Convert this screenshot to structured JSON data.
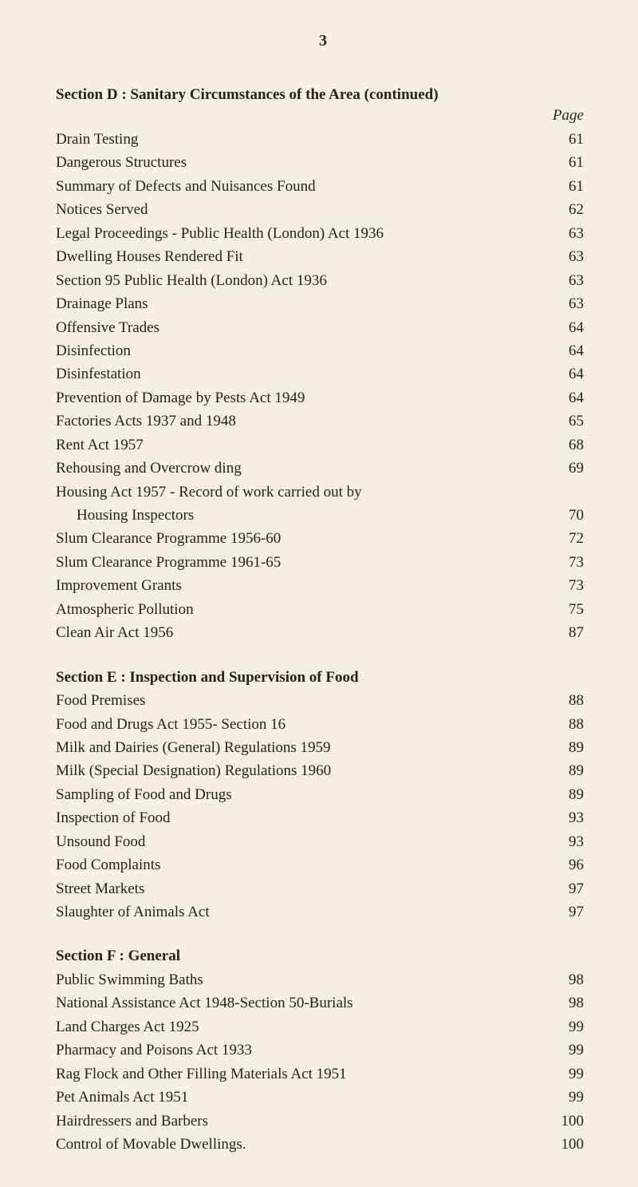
{
  "page_number": "3",
  "page_label": "Page",
  "colors": {
    "background": "#f5efe2",
    "text": "#2a1f15"
  },
  "typography": {
    "font_family": "Georgia, Times New Roman, serif",
    "body_fontsize_pt": 14,
    "title_fontsize_pt": 14,
    "page_number_fontsize_pt": 15,
    "line_height": 1.55
  },
  "sectionD": {
    "title": "Section D : Sanitary Circumstances of the Area (continued)",
    "items": [
      {
        "label": "Drain Testing",
        "page": "61"
      },
      {
        "label": "Dangerous Structures",
        "page": "61"
      },
      {
        "label": "Summary of Defects and Nuisances Found",
        "page": "61"
      },
      {
        "label": "Notices Served",
        "page": "62"
      },
      {
        "label": "Legal Proceedings - Public Health (London) Act 1936",
        "page": "63"
      },
      {
        "label": "Dwelling Houses Rendered Fit",
        "page": "63"
      },
      {
        "label": "Section 95 Public Health (London) Act 1936",
        "page": "63"
      },
      {
        "label": "Drainage Plans",
        "page": "63"
      },
      {
        "label": "Offensive Trades",
        "page": "64"
      },
      {
        "label": "Disinfection",
        "page": "64"
      },
      {
        "label": "Disinfestation",
        "page": "64"
      },
      {
        "label": "Prevention of Damage by Pests Act 1949",
        "page": "64"
      },
      {
        "label": "Factories Acts 1937 and 1948",
        "page": "65"
      },
      {
        "label": "Rent Act 1957",
        "page": "68"
      },
      {
        "label": "Rehousing and Overcrow ding",
        "page": "69"
      },
      {
        "label": "Housing Act 1957 - Record of work carried out by",
        "page": ""
      },
      {
        "label": "Housing Inspectors",
        "page": "70",
        "indent": true
      },
      {
        "label": "Slum Clearance Programme 1956-60",
        "page": "72"
      },
      {
        "label": "Slum Clearance Programme 1961-65",
        "page": "73"
      },
      {
        "label": "Improvement Grants",
        "page": "73"
      },
      {
        "label": "Atmospheric Pollution",
        "page": "75"
      },
      {
        "label": "Clean Air Act 1956",
        "page": "87"
      }
    ]
  },
  "sectionE": {
    "title": "Section E : Inspection and Supervision of Food",
    "items": [
      {
        "label": "Food Premises",
        "page": "88"
      },
      {
        "label": "Food and Drugs Act 1955- Section 16",
        "page": "88"
      },
      {
        "label": "Milk and Dairies (General) Regulations 1959",
        "page": "89"
      },
      {
        "label": "Milk (Special Designation) Regulations 1960",
        "page": "89"
      },
      {
        "label": "Sampling of Food and Drugs",
        "page": "89"
      },
      {
        "label": "Inspection of Food",
        "page": "93"
      },
      {
        "label": "Unsound Food",
        "page": "93"
      },
      {
        "label": "Food Complaints",
        "page": "96"
      },
      {
        "label": "Street Markets",
        "page": "97"
      },
      {
        "label": "Slaughter of Animals Act",
        "page": "97"
      }
    ]
  },
  "sectionF": {
    "title": "Section F : General",
    "items": [
      {
        "label": "Public Swimming Baths",
        "page": "98"
      },
      {
        "label": "National Assistance Act 1948-Section 50-Burials",
        "page": "98"
      },
      {
        "label": "Land Charges Act 1925",
        "page": "99"
      },
      {
        "label": "Pharmacy and Poisons Act 1933",
        "page": "99"
      },
      {
        "label": "Rag Flock and Other Filling Materials Act 1951",
        "page": "99"
      },
      {
        "label": "Pet Animals Act 1951",
        "page": "99"
      },
      {
        "label": "Hairdressers and Barbers",
        "page": "100"
      },
      {
        "label": "Control of Movable Dwellings.",
        "page": "100"
      }
    ]
  }
}
